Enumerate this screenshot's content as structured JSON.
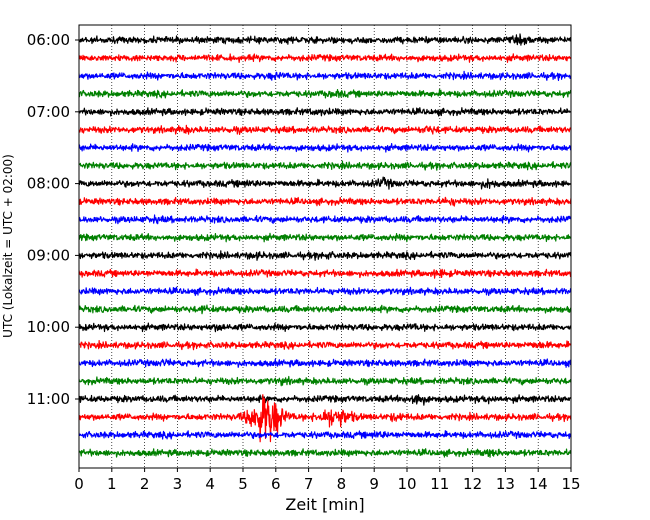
{
  "chart_data": {
    "type": "line",
    "title": "",
    "xlabel": "Zeit  [min]",
    "ylabel": "UTC (Lokalzeit = UTC + 02:00)",
    "xlim": [
      0,
      15
    ],
    "x_ticks": [
      "0",
      "1",
      "2",
      "3",
      "4",
      "5",
      "6",
      "7",
      "8",
      "9",
      "10",
      "11",
      "12",
      "13",
      "14",
      "15"
    ],
    "y_ticks": [
      "06:00",
      "07:00",
      "08:00",
      "09:00",
      "10:00",
      "11:00"
    ],
    "grid": "vertical dotted",
    "trace_interval_min": 15,
    "trace_colors": [
      "#000000",
      "#ff0000",
      "#0000ff",
      "#008000"
    ],
    "traces": [
      {
        "start": "06:00",
        "color": "#000000",
        "events": [
          {
            "t": 6.5,
            "amp": 1.3
          },
          {
            "t": 13.5,
            "amp": 1.6
          }
        ]
      },
      {
        "start": "06:15",
        "color": "#ff0000",
        "events": []
      },
      {
        "start": "06:30",
        "color": "#0000ff",
        "events": [
          {
            "t": 6.0,
            "amp": 1.4
          }
        ]
      },
      {
        "start": "06:45",
        "color": "#008000",
        "events": [
          {
            "t": 7.8,
            "amp": 1.4
          }
        ]
      },
      {
        "start": "07:00",
        "color": "#000000",
        "events": [
          {
            "t": 7.3,
            "amp": 1.3
          }
        ]
      },
      {
        "start": "07:15",
        "color": "#ff0000",
        "events": [
          {
            "t": 3.2,
            "amp": 1.4
          },
          {
            "t": 4.7,
            "amp": 1.3
          },
          {
            "t": 10.7,
            "amp": 1.6
          }
        ]
      },
      {
        "start": "07:30",
        "color": "#0000ff",
        "events": []
      },
      {
        "start": "07:45",
        "color": "#008000",
        "events": []
      },
      {
        "start": "08:00",
        "color": "#000000",
        "events": [
          {
            "t": 5.1,
            "amp": 1.4
          },
          {
            "t": 9.3,
            "amp": 1.8
          },
          {
            "t": 12.5,
            "amp": 1.8
          }
        ]
      },
      {
        "start": "08:15",
        "color": "#ff0000",
        "events": [
          {
            "t": 11.3,
            "amp": 1.6
          }
        ]
      },
      {
        "start": "08:30",
        "color": "#0000ff",
        "events": [
          {
            "t": 2.3,
            "amp": 1.3
          }
        ]
      },
      {
        "start": "08:45",
        "color": "#008000",
        "events": []
      },
      {
        "start": "09:00",
        "color": "#000000",
        "events": [
          {
            "t": 5.4,
            "amp": 1.3
          },
          {
            "t": 7.5,
            "amp": 1.4
          }
        ]
      },
      {
        "start": "09:15",
        "color": "#ff0000",
        "events": [
          {
            "t": 11.0,
            "amp": 1.6
          }
        ]
      },
      {
        "start": "09:30",
        "color": "#0000ff",
        "events": []
      },
      {
        "start": "09:45",
        "color": "#008000",
        "events": [
          {
            "t": 3.8,
            "amp": 1.3
          }
        ]
      },
      {
        "start": "10:00",
        "color": "#000000",
        "events": [
          {
            "t": 4.3,
            "amp": 1.5
          },
          {
            "t": 10.2,
            "amp": 1.3
          }
        ]
      },
      {
        "start": "10:15",
        "color": "#ff0000",
        "events": [
          {
            "t": 14.0,
            "amp": 1.4
          }
        ]
      },
      {
        "start": "10:30",
        "color": "#0000ff",
        "events": [
          {
            "t": 2.6,
            "amp": 1.3
          }
        ]
      },
      {
        "start": "10:45",
        "color": "#008000",
        "events": [
          {
            "t": 6.2,
            "amp": 1.3
          }
        ]
      },
      {
        "start": "11:00",
        "color": "#000000",
        "events": [
          {
            "t": 10.3,
            "amp": 2.6
          },
          {
            "t": 12.5,
            "amp": 1.4
          }
        ]
      },
      {
        "start": "11:15",
        "color": "#ff0000",
        "events": [
          {
            "t": 5.7,
            "amp": 8.5
          },
          {
            "t": 7.8,
            "amp": 3.5
          },
          {
            "t": 9.7,
            "amp": 1.6
          }
        ]
      },
      {
        "start": "11:30",
        "color": "#0000ff",
        "events": [
          {
            "t": 9.1,
            "amp": 1.4
          }
        ]
      },
      {
        "start": "11:45",
        "color": "#008000",
        "events": [
          {
            "t": 12.6,
            "amp": 1.4
          }
        ]
      }
    ]
  }
}
